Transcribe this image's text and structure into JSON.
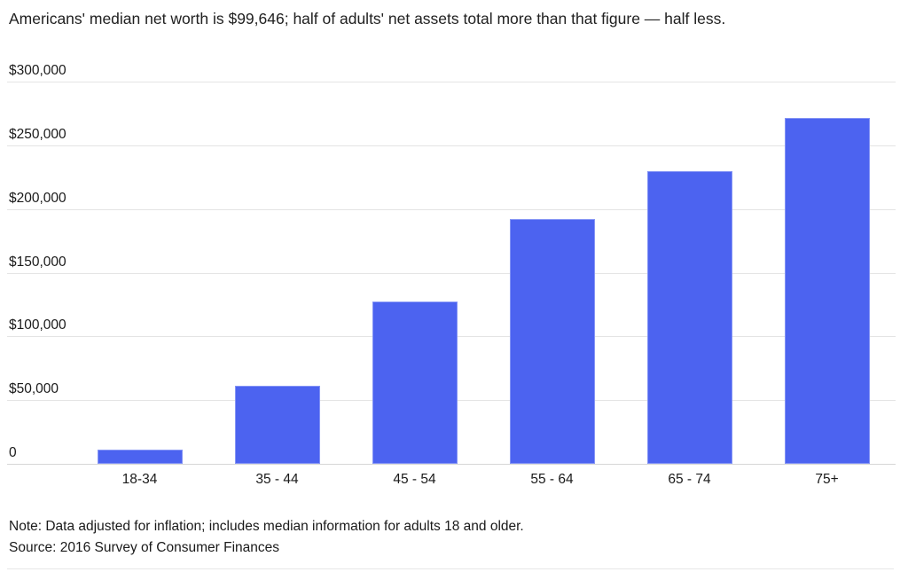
{
  "title": "Americans' median net worth is $99,646; half of adults' net assets total more than that figure — half less.",
  "note": "Note: Data adjusted for inflation; includes median information for adults 18 and older.",
  "source": "Source: 2016 Survey of Consumer Finances",
  "colors": {
    "bar": "#4c63f0",
    "bar_edge": "#8494f5",
    "gridline": "#e4e4e4",
    "baseline": "#d6d6d6",
    "text": "#1a1a1a",
    "divider": "#e7e7e7",
    "background": "#ffffff"
  },
  "chart_data": {
    "type": "bar",
    "title": "Americans' median net worth is $99,646; half of adults' net assets total more than that figure — half less.",
    "categories": [
      "18-34",
      "35 - 44",
      "45 - 54",
      "55 - 64",
      "65 - 74",
      "75+"
    ],
    "values": [
      11400,
      61200,
      127200,
      191800,
      229500,
      271200
    ],
    "xlabel": "",
    "ylabel": "",
    "ylim": [
      0,
      300000
    ],
    "y_ticks": [
      {
        "value": 300000,
        "label": "$300,000"
      },
      {
        "value": 250000,
        "label": "$250,000"
      },
      {
        "value": 200000,
        "label": "$200,000"
      },
      {
        "value": 150000,
        "label": "$150,000"
      },
      {
        "value": 100000,
        "label": "$100,000"
      },
      {
        "value": 50000,
        "label": "$50,000"
      },
      {
        "value": 0,
        "label": "0"
      }
    ],
    "grid": true,
    "legend": false,
    "bar_color": "#4c63f0",
    "note": "Note: Data adjusted for inflation; includes median information for adults 18 and older.",
    "source": "Source: 2016 Survey of Consumer Finances"
  }
}
